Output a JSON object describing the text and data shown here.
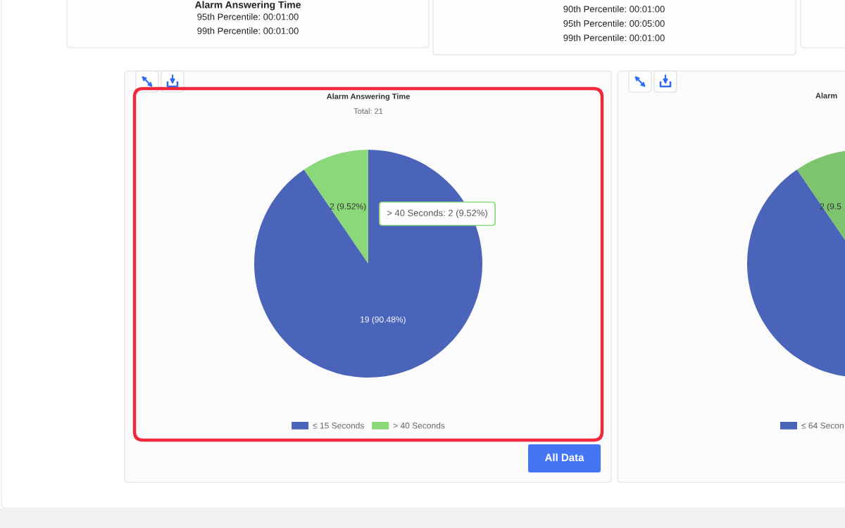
{
  "chart_data": [
    {
      "type": "other",
      "title": "Alarm Answering Time",
      "annotations": [
        "95th Percentile: 00:01:00",
        "99th Percentile: 00:01:00"
      ]
    },
    {
      "type": "other",
      "annotations": [
        "90th Percentile: 00:01:00",
        "95th Percentile: 00:05:00",
        "99th Percentile: 00:01:00"
      ]
    },
    {
      "type": "pie",
      "title": "Alarm Answering Time",
      "subtitle": "Total: 21",
      "categories": [
        "≤ 15 Seconds",
        "> 40 Seconds"
      ],
      "values": [
        19,
        2
      ],
      "colors": [
        "#4a64b9",
        "#8ad879"
      ],
      "value_labels": [
        "19 (90.48%)",
        "2 (9.52%)"
      ],
      "legend": "bottom",
      "annotations": [
        "> 40 Seconds: 2 (9.52%)",
        "All Data"
      ]
    },
    {
      "type": "pie",
      "title": "Alarm",
      "categories": [
        "≤ 64 Secon",
        null
      ],
      "values": [
        19,
        2
      ],
      "colors": [
        "#4a64b9",
        "#7dc46e"
      ],
      "value_labels": [
        null,
        "2 (9.5"
      ],
      "legend": "bottom"
    }
  ]
}
